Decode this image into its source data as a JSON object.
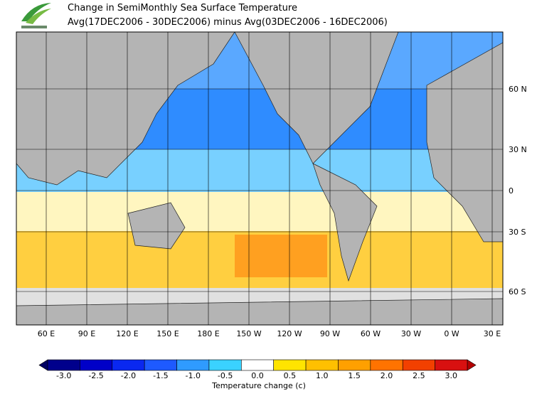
{
  "header": {
    "title": "Change in SemiMonthly Sea Surface Temperature",
    "subtitle": "Avg(17DEC2006 - 30DEC2006) minus Avg(03DEC2006 - 16DEC2006)"
  },
  "map": {
    "lon_labels": [
      "60 E",
      "90 E",
      "120 E",
      "150 E",
      "180 E",
      "150 W",
      "120 W",
      "90 W",
      "60 W",
      "30 W",
      "0 W",
      "30 E"
    ],
    "lat_labels": [
      "60 N",
      "30 N",
      "0",
      "30 S",
      "60 S"
    ]
  },
  "colorbar": {
    "labels": [
      "-3.0",
      "-2.5",
      "-2.0",
      "-1.5",
      "-1.0",
      "-0.5",
      "0.0",
      "0.5",
      "1.0",
      "1.5",
      "2.0",
      "2.5",
      "3.0"
    ],
    "colors": [
      "#00008c",
      "#0000c8",
      "#0a28f0",
      "#1e5aff",
      "#2f9bff",
      "#3ad2ff",
      "#ffffff",
      "#ffe400",
      "#ffc000",
      "#ffa000",
      "#ff7300",
      "#f24000",
      "#d81010"
    ],
    "low_color": "#000064",
    "high_color": "#b40000",
    "title": "Temperature change (c)"
  }
}
